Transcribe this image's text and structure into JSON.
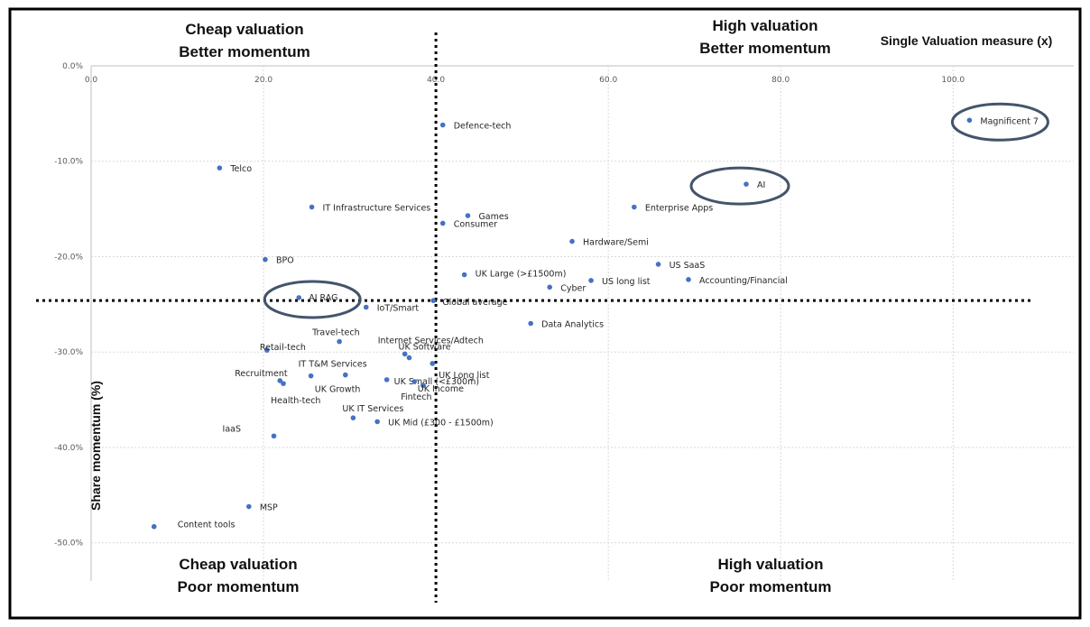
{
  "chart_data": {
    "type": "scatter",
    "title": "",
    "xlabel": "Single Valuation measure (x)",
    "ylabel": "Share momentum (%)",
    "xlim": [
      0,
      114
    ],
    "ylim": [
      -54,
      0
    ],
    "x_ticks": [
      {
        "value": 0,
        "label": "0.0"
      },
      {
        "value": 20,
        "label": "20.0"
      },
      {
        "value": 40,
        "label": "40.0"
      },
      {
        "value": 60,
        "label": "60.0"
      },
      {
        "value": 80,
        "label": "80.0"
      },
      {
        "value": 100,
        "label": "100.0"
      }
    ],
    "y_ticks": [
      {
        "value": 0,
        "label": "0.0%"
      },
      {
        "value": -10,
        "label": "-10.0%"
      },
      {
        "value": -20,
        "label": "-20.0%"
      },
      {
        "value": -30,
        "label": "-30.0%"
      },
      {
        "value": -40,
        "label": "-40.0%"
      },
      {
        "value": -50,
        "label": "-50.0%"
      }
    ],
    "grid": true,
    "dividers": {
      "x": 40.0,
      "y": -24.6
    },
    "quadrants": {
      "top_left": [
        "Cheap valuation",
        "Better momentum"
      ],
      "top_right": [
        "High valuation",
        "Better momentum"
      ],
      "bottom_left": [
        "Cheap valuation",
        "Poor momentum"
      ],
      "bottom_right": [
        "High valuation",
        "Poor momentum"
      ]
    },
    "highlighted": [
      "Magnificent 7",
      "AI",
      "AI RAG"
    ],
    "colors": {
      "point": "#4472C4",
      "circle": "#44546A",
      "grid": "#D9D9D9",
      "border": "#000000"
    },
    "points": [
      {
        "name": "Magnificent 7",
        "x": 101.9,
        "y": -5.7
      },
      {
        "name": "Defence-tech",
        "x": 40.8,
        "y": -6.2
      },
      {
        "name": "Telco",
        "x": 14.9,
        "y": -10.7
      },
      {
        "name": "AI",
        "x": 76.0,
        "y": -12.4
      },
      {
        "name": "IT Infrastructure Services",
        "x": 25.6,
        "y": -14.8
      },
      {
        "name": "Enterprise Apps",
        "x": 63.0,
        "y": -14.8
      },
      {
        "name": "Games",
        "x": 43.7,
        "y": -15.7
      },
      {
        "name": "Consumer",
        "x": 40.8,
        "y": -16.5
      },
      {
        "name": "Hardware/Semi",
        "x": 55.8,
        "y": -18.4
      },
      {
        "name": "BPO",
        "x": 20.2,
        "y": -20.3
      },
      {
        "name": "US SaaS",
        "x": 65.8,
        "y": -20.8
      },
      {
        "name": "UK Large (>£1500m)",
        "x": 43.3,
        "y": -21.9
      },
      {
        "name": "Accounting/Financial",
        "x": 69.3,
        "y": -22.4
      },
      {
        "name": "US long list",
        "x": 58.0,
        "y": -22.5
      },
      {
        "name": "Cyber",
        "x": 53.2,
        "y": -23.2
      },
      {
        "name": "AI RAG",
        "x": 24.1,
        "y": -24.3
      },
      {
        "name": "Global average",
        "x": 39.7,
        "y": -24.6
      },
      {
        "name": "IoT/Smart",
        "x": 31.9,
        "y": -25.3
      },
      {
        "name": "Data Analytics",
        "x": 51.0,
        "y": -27.0
      },
      {
        "name": "Travel-tech",
        "x": 28.8,
        "y": -28.9
      },
      {
        "name": "Retail-tech",
        "x": 20.4,
        "y": -29.8
      },
      {
        "name": "Internet Services/Adtech",
        "x": 36.4,
        "y": -30.2
      },
      {
        "name": "UK Software",
        "x": 36.9,
        "y": -30.6
      },
      {
        "name": "UK Long list",
        "x": 39.6,
        "y": -31.2
      },
      {
        "name": "IT T&M Services",
        "x": 25.5,
        "y": -32.5
      },
      {
        "name": "Recruitment",
        "x": 21.9,
        "y": -33.0
      },
      {
        "name": "UK Small (<£300m)",
        "x": 34.3,
        "y": -32.9
      },
      {
        "name": "UK Growth",
        "x": 29.5,
        "y": -32.4
      },
      {
        "name": "Health-tech",
        "x": 22.3,
        "y": -33.3
      },
      {
        "name": "UK Income",
        "x": 38.5,
        "y": -33.5
      },
      {
        "name": "Fintech",
        "x": 37.5,
        "y": -33.1
      },
      {
        "name": "UK IT Services",
        "x": 30.4,
        "y": -36.9
      },
      {
        "name": "UK Mid (£300 - £1500m)",
        "x": 33.2,
        "y": -37.3
      },
      {
        "name": "IaaS",
        "x": 21.2,
        "y": -38.8
      },
      {
        "name": "MSP",
        "x": 18.3,
        "y": -46.2
      },
      {
        "name": "Content tools",
        "x": 7.3,
        "y": -48.3
      }
    ]
  }
}
